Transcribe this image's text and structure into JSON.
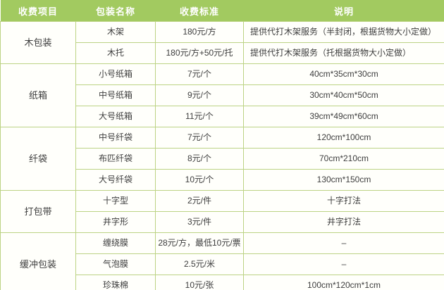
{
  "table": {
    "headers": [
      "收费项目",
      "包装名称",
      "收费标准",
      "说明"
    ],
    "groups": [
      {
        "category": "木包装",
        "rows": [
          {
            "name": "木架",
            "price": "180元/方",
            "note": "提供代打木架服务（半封闭，根据货物大小定做）"
          },
          {
            "name": "木托",
            "price": "180元/方+50元/托",
            "note": "提供代打木架服务（托根据货物大小定做）"
          }
        ]
      },
      {
        "category": "纸箱",
        "rows": [
          {
            "name": "小号纸箱",
            "price": "7元/个",
            "note": "40cm*35cm*30cm"
          },
          {
            "name": "中号纸箱",
            "price": "9元/个",
            "note": "30cm*40cm*50cm"
          },
          {
            "name": "大号纸箱",
            "price": "11元/个",
            "note": "39cm*49cm*60cm"
          }
        ]
      },
      {
        "category": "纤袋",
        "rows": [
          {
            "name": "中号纤袋",
            "price": "7元/个",
            "note": "120cm*100cm"
          },
          {
            "name": "布匹纤袋",
            "price": "8元/个",
            "note": "70cm*210cm"
          },
          {
            "name": "大号纤袋",
            "price": "10元/个",
            "note": "130cm*150cm"
          }
        ]
      },
      {
        "category": "打包带",
        "rows": [
          {
            "name": "十字型",
            "price": "2元/件",
            "note": "十字打法"
          },
          {
            "name": "井字形",
            "price": "3元/件",
            "note": "井字打法"
          }
        ]
      },
      {
        "category": "缓冲包装",
        "rows": [
          {
            "name": "缠绕膜",
            "price": "28元/方，最低10元/票",
            "note": "–"
          },
          {
            "name": "气泡膜",
            "price": "2.5元/米",
            "note": "–"
          },
          {
            "name": "珍珠棉",
            "price": "10元/张",
            "note": "100cm*120cm*1cm"
          }
        ]
      }
    ],
    "colors": {
      "header_bg": "#a2ca60",
      "header_text": "#ffffff",
      "border": "#bcd384",
      "cell_bg": "#fffffb",
      "text": "#3d3d3d"
    }
  }
}
